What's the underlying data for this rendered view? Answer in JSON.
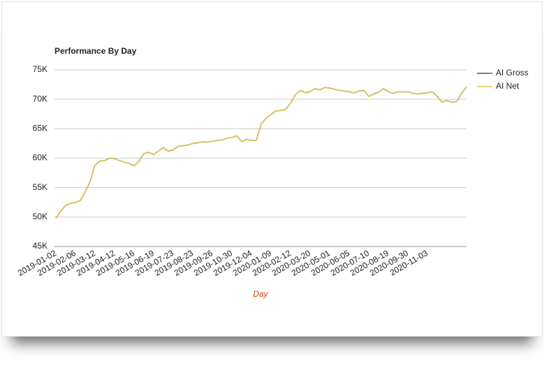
{
  "chart_data": {
    "type": "line",
    "title": "Performance By Day",
    "x_label": "Day",
    "categories": [
      "2019-01-02",
      null,
      null,
      null,
      "2019-02-06",
      null,
      null,
      null,
      "2019-03-12",
      null,
      null,
      null,
      "2019-04-12",
      null,
      null,
      null,
      "2019-05-16",
      null,
      null,
      null,
      "2019-06-19",
      null,
      null,
      null,
      "2019-07-23",
      null,
      null,
      null,
      "2019-08-23",
      null,
      null,
      null,
      "2019-09-26",
      null,
      null,
      null,
      "2019-10-30",
      null,
      null,
      null,
      "2019-12-04",
      null,
      null,
      null,
      "2020-01-09",
      null,
      null,
      null,
      "2020-02-12",
      null,
      null,
      null,
      "2020-03-20",
      null,
      null,
      null,
      "2020-05-01",
      null,
      null,
      null,
      "2020-06-05",
      null,
      null,
      null,
      "2020-07-10",
      null,
      null,
      null,
      "2020-08-19",
      null,
      null,
      null,
      "2020-09-30",
      null,
      null,
      null,
      "2020-11-03",
      null,
      null,
      null,
      null,
      null,
      null,
      null,
      null
    ],
    "series": [
      {
        "name": "AI Gross",
        "color": "#555555",
        "values": [
          49800,
          51000,
          52000,
          52300,
          52500,
          52800,
          54300,
          56000,
          58800,
          59500,
          59600,
          60000,
          59900,
          59600,
          59300,
          59100,
          58700,
          59500,
          60800,
          61000,
          60600,
          61200,
          61800,
          61200,
          61400,
          62000,
          62100,
          62200,
          62500,
          62600,
          62800,
          62700,
          62900,
          63000,
          63100,
          63400,
          63500,
          63800,
          62800,
          63200,
          63000,
          63000,
          65800,
          66800,
          67400,
          68000,
          68100,
          68300,
          69300,
          70800,
          71500,
          71100,
          71300,
          71800,
          71600,
          72000,
          71900,
          71700,
          71500,
          71400,
          71300,
          71100,
          71400,
          71500,
          70500,
          70900,
          71200,
          71800,
          71300,
          71000,
          71300,
          71200,
          71300,
          71000,
          70900,
          71000,
          71100,
          71300,
          70500,
          69500,
          69800,
          69500,
          69600,
          71000,
          72100
        ]
      },
      {
        "name": "AI Net",
        "color": "#e0c253",
        "values": [
          49800,
          51000,
          52000,
          52300,
          52500,
          52800,
          54300,
          56000,
          58800,
          59500,
          59600,
          60000,
          59900,
          59600,
          59300,
          59100,
          58700,
          59500,
          60800,
          61000,
          60600,
          61200,
          61800,
          61200,
          61400,
          62000,
          62100,
          62200,
          62500,
          62600,
          62800,
          62700,
          62900,
          63000,
          63100,
          63400,
          63500,
          63800,
          62800,
          63200,
          63000,
          63000,
          65800,
          66800,
          67400,
          68000,
          68100,
          68300,
          69300,
          70800,
          71500,
          71100,
          71300,
          71800,
          71600,
          72000,
          71900,
          71700,
          71500,
          71400,
          71300,
          71100,
          71400,
          71500,
          70500,
          70900,
          71200,
          71800,
          71300,
          71000,
          71300,
          71200,
          71300,
          71000,
          70900,
          71000,
          71100,
          71300,
          70500,
          69500,
          69800,
          69500,
          69600,
          71000,
          72100
        ]
      }
    ],
    "ylim": [
      45000,
      75000
    ],
    "yticks": [
      {
        "value": 45000,
        "label": "45K"
      },
      {
        "value": 50000,
        "label": "50K"
      },
      {
        "value": 55000,
        "label": "55K"
      },
      {
        "value": 60000,
        "label": "60K"
      },
      {
        "value": 65000,
        "label": "65K"
      },
      {
        "value": 70000,
        "label": "70K"
      },
      {
        "value": 75000,
        "label": "75K"
      }
    ],
    "grid": true,
    "legend": "right"
  }
}
